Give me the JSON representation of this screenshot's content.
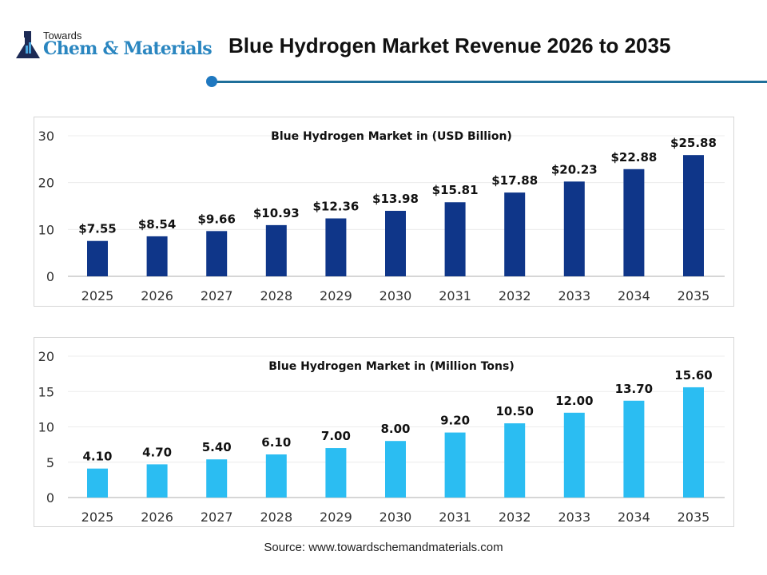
{
  "logo": {
    "line1": "Towards",
    "line2": "Chem & Materials"
  },
  "title": "Blue Hydrogen Market Revenue 2026 to 2035",
  "source": "Source: www.towardschemandmaterials.com",
  "colors": {
    "revenue_bar": "#0f3689",
    "volume_bar": "#2bbdf2",
    "accent": "#1f6f9a"
  },
  "chart_data": [
    {
      "type": "bar",
      "title": "Blue Hydrogen Market in (USD Billion)",
      "categories": [
        "2025",
        "2026",
        "2027",
        "2028",
        "2029",
        "2030",
        "2031",
        "2032",
        "2033",
        "2034",
        "2035"
      ],
      "values": [
        7.55,
        8.54,
        9.66,
        10.93,
        12.36,
        13.98,
        15.81,
        17.88,
        20.23,
        22.88,
        25.88
      ],
      "data_labels": [
        "$7.55",
        "$8.54",
        "$9.66",
        "$10.93",
        "$12.36",
        "$13.98",
        "$15.81",
        "$17.88",
        "$20.23",
        "$22.88",
        "$25.88"
      ],
      "yticks": [
        "0",
        "10",
        "20",
        "30"
      ],
      "ylim": [
        0,
        30
      ],
      "grid": true
    },
    {
      "type": "bar",
      "title": "Blue Hydrogen Market in (Million Tons)",
      "categories": [
        "2025",
        "2026",
        "2027",
        "2028",
        "2029",
        "2030",
        "2031",
        "2032",
        "2033",
        "2034",
        "2035"
      ],
      "values": [
        4.1,
        4.7,
        5.4,
        6.1,
        7.0,
        8.0,
        9.2,
        10.5,
        12.0,
        13.7,
        15.6
      ],
      "data_labels": [
        "4.10",
        "4.70",
        "5.40",
        "6.10",
        "7.00",
        "8.00",
        "9.20",
        "10.50",
        "12.00",
        "13.70",
        "15.60"
      ],
      "yticks": [
        "0",
        "5",
        "10",
        "15",
        "20"
      ],
      "ylim": [
        0,
        20
      ],
      "grid": true
    }
  ]
}
